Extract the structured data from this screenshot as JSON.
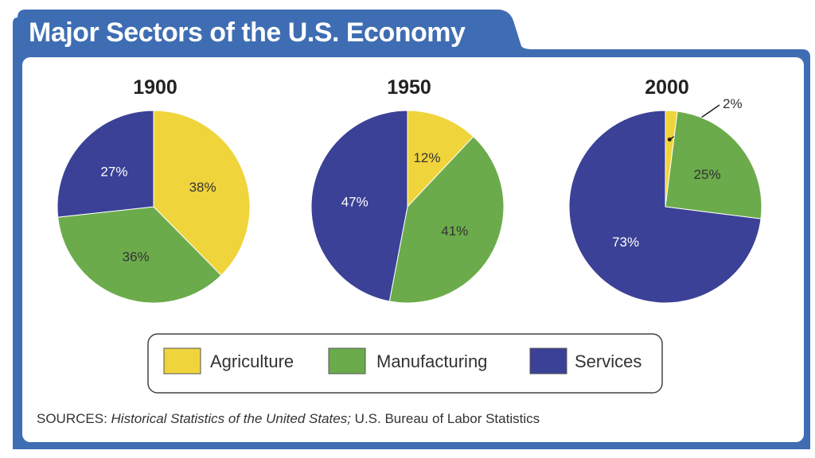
{
  "chart_data": {
    "type": "pie",
    "title": "Major Sectors of the U.S. Economy",
    "legend": {
      "placement": "bottom",
      "entries": [
        "Agriculture",
        "Manufacturing",
        "Services"
      ]
    },
    "colors": {
      "Agriculture": "#f0d43c",
      "Manufacturing": "#6bab4b",
      "Services": "#3b4196"
    },
    "charts": [
      {
        "year": "1900",
        "slices": [
          {
            "name": "Agriculture",
            "value": 38,
            "label": "38%"
          },
          {
            "name": "Manufacturing",
            "value": 36,
            "label": "36%"
          },
          {
            "name": "Services",
            "value": 27,
            "label": "27%"
          }
        ]
      },
      {
        "year": "1950",
        "slices": [
          {
            "name": "Agriculture",
            "value": 12,
            "label": "12%"
          },
          {
            "name": "Manufacturing",
            "value": 41,
            "label": "41%"
          },
          {
            "name": "Services",
            "value": 47,
            "label": "47%"
          }
        ]
      },
      {
        "year": "2000",
        "slices": [
          {
            "name": "Agriculture",
            "value": 2,
            "label": "2%"
          },
          {
            "name": "Manufacturing",
            "value": 25,
            "label": "25%"
          },
          {
            "name": "Services",
            "value": 73,
            "label": "73%"
          }
        ]
      }
    ],
    "source": {
      "prefix": "SOURCES: ",
      "italic": "Historical Statistics of the United States;",
      "rest": " U.S. Bureau of Labor Statistics"
    }
  }
}
